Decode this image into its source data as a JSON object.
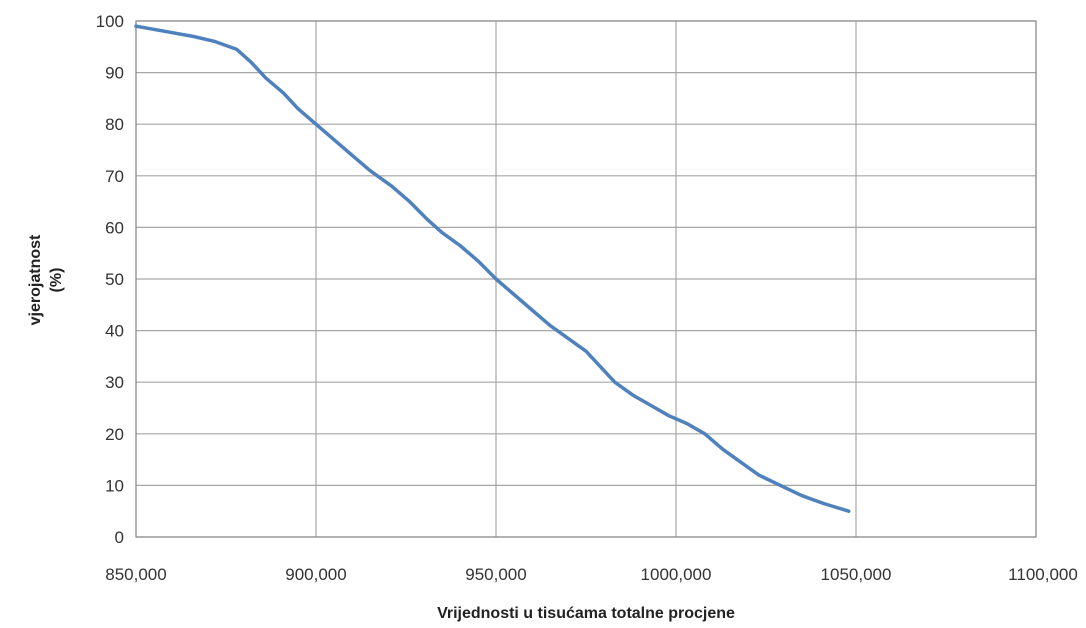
{
  "chart_data": {
    "type": "line",
    "title": "",
    "xlabel": "Vrijednosti u tisućama totalne procjene",
    "ylabel_lines": [
      "vjerojatnost",
      "(%)"
    ],
    "xlim": [
      850000,
      1100000
    ],
    "ylim": [
      0,
      100
    ],
    "x_ticks": [
      {
        "value": 850000,
        "label": "850,000"
      },
      {
        "value": 900000,
        "label": "900,000"
      },
      {
        "value": 950000,
        "label": "950,000"
      },
      {
        "value": 1000000,
        "label": "1000,000"
      },
      {
        "value": 1050000,
        "label": "1050,000"
      },
      {
        "value": 1100000,
        "label": "1100,000"
      }
    ],
    "y_ticks": [
      {
        "value": 0,
        "label": "0"
      },
      {
        "value": 10,
        "label": "10"
      },
      {
        "value": 20,
        "label": "20"
      },
      {
        "value": 30,
        "label": "30"
      },
      {
        "value": 40,
        "label": "40"
      },
      {
        "value": 50,
        "label": "50"
      },
      {
        "value": 60,
        "label": "60"
      },
      {
        "value": 70,
        "label": "70"
      },
      {
        "value": 80,
        "label": "80"
      },
      {
        "value": 90,
        "label": "90"
      },
      {
        "value": 100,
        "label": "100"
      }
    ],
    "grid": true,
    "legend": "none",
    "series": [
      {
        "color": "#4f81bd",
        "points": [
          [
            850000,
            99
          ],
          [
            858000,
            98
          ],
          [
            866000,
            97
          ],
          [
            872000,
            96
          ],
          [
            878000,
            94.5
          ],
          [
            882000,
            92
          ],
          [
            886000,
            89
          ],
          [
            891000,
            86
          ],
          [
            895000,
            83
          ],
          [
            900000,
            80
          ],
          [
            905000,
            77
          ],
          [
            910000,
            74
          ],
          [
            915000,
            71
          ],
          [
            921000,
            68
          ],
          [
            926000,
            65
          ],
          [
            931000,
            61.5
          ],
          [
            935000,
            59
          ],
          [
            940000,
            56.5
          ],
          [
            945000,
            53.5
          ],
          [
            950000,
            50
          ],
          [
            955000,
            47
          ],
          [
            960000,
            44
          ],
          [
            965000,
            41
          ],
          [
            970000,
            38.5
          ],
          [
            975000,
            36
          ],
          [
            979000,
            33
          ],
          [
            983000,
            30
          ],
          [
            988000,
            27.5
          ],
          [
            993000,
            25.5
          ],
          [
            998000,
            23.5
          ],
          [
            1003000,
            22
          ],
          [
            1008000,
            20
          ],
          [
            1013000,
            17
          ],
          [
            1018000,
            14.5
          ],
          [
            1023000,
            12
          ],
          [
            1029000,
            10
          ],
          [
            1035000,
            8
          ],
          [
            1041000,
            6.5
          ],
          [
            1048000,
            5
          ]
        ]
      }
    ]
  }
}
